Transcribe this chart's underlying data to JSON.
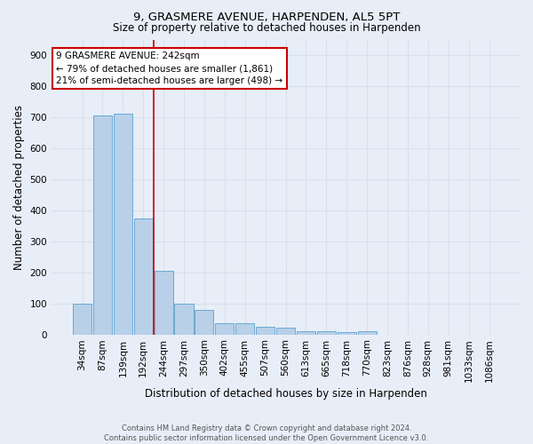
{
  "title": "9, GRASMERE AVENUE, HARPENDEN, AL5 5PT",
  "subtitle": "Size of property relative to detached houses in Harpenden",
  "xlabel": "Distribution of detached houses by size in Harpenden",
  "ylabel": "Number of detached properties",
  "categories": [
    "34sqm",
    "87sqm",
    "139sqm",
    "192sqm",
    "244sqm",
    "297sqm",
    "350sqm",
    "402sqm",
    "455sqm",
    "507sqm",
    "560sqm",
    "613sqm",
    "665sqm",
    "718sqm",
    "770sqm",
    "823sqm",
    "876sqm",
    "928sqm",
    "981sqm",
    "1033sqm",
    "1086sqm"
  ],
  "values": [
    100,
    706,
    711,
    375,
    205,
    100,
    80,
    35,
    35,
    25,
    22,
    10,
    10,
    8,
    10,
    0,
    0,
    0,
    0,
    0,
    0
  ],
  "bar_color": "#b8d0e8",
  "bar_edge_color": "#6aaad4",
  "vline_x_index": 4,
  "vline_color": "#cc0000",
  "annotation_text": "9 GRASMERE AVENUE: 242sqm\n← 79% of detached houses are smaller (1,861)\n21% of semi-detached houses are larger (498) →",
  "annotation_box_color": "#ffffff",
  "annotation_box_edge_color": "#cc0000",
  "ylim": [
    0,
    950
  ],
  "yticks": [
    0,
    100,
    200,
    300,
    400,
    500,
    600,
    700,
    800,
    900
  ],
  "footer_text": "Contains HM Land Registry data © Crown copyright and database right 2024.\nContains public sector information licensed under the Open Government Licence v3.0.",
  "background_color": "#e8eef8",
  "grid_color": "#d8e0ec",
  "title_fontsize": 9.5,
  "subtitle_fontsize": 8.5,
  "xlabel_fontsize": 8.5,
  "ylabel_fontsize": 8.5,
  "tick_fontsize": 7.5,
  "annotation_fontsize": 7.5,
  "footer_fontsize": 6.0
}
